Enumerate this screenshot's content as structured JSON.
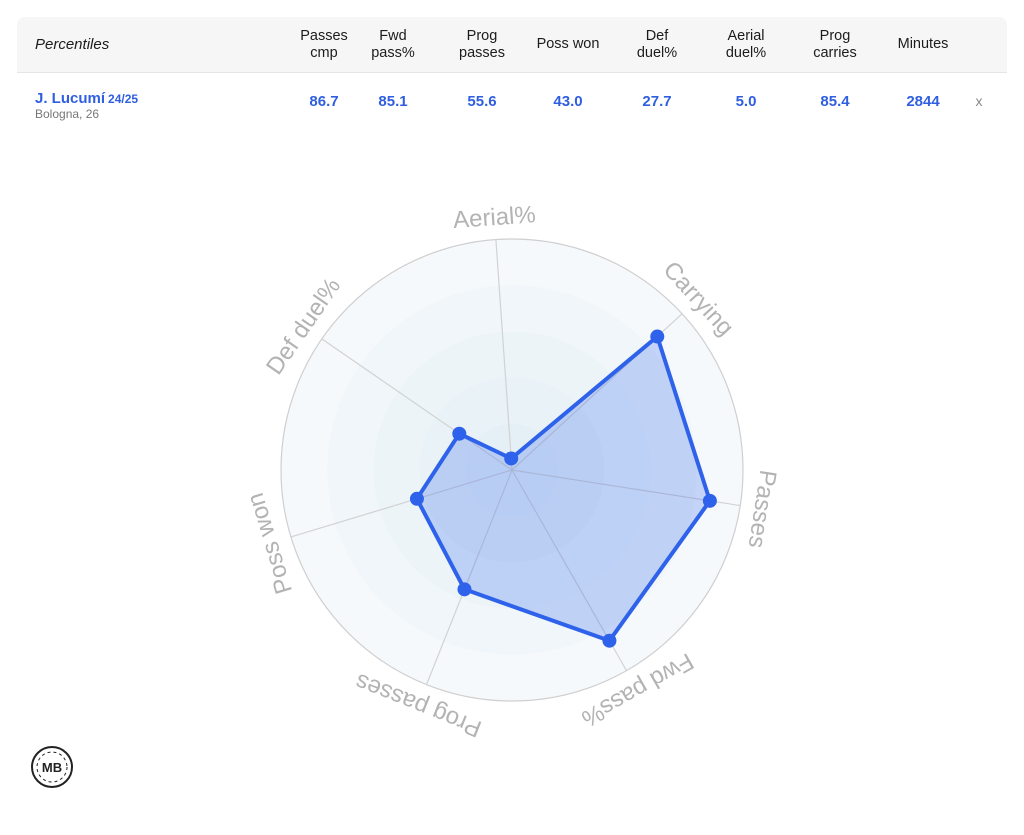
{
  "table": {
    "title": "Percentiles",
    "headers": [
      {
        "line1": "Passes",
        "line2": "cmp"
      },
      {
        "line1": "Fwd",
        "line2": "pass%"
      },
      {
        "line1": "Prog",
        "line2": "passes"
      },
      {
        "line1": "Poss won",
        "line2": ""
      },
      {
        "line1": "Def",
        "line2": "duel%"
      },
      {
        "line1": "Aerial",
        "line2": "duel%"
      },
      {
        "line1": "Prog",
        "line2": "carries"
      },
      {
        "line1": "Minutes",
        "line2": ""
      }
    ],
    "player": {
      "name": "J. Lucumí",
      "season": "24/25",
      "club_age": "Bologna, 26",
      "values": [
        "86.7",
        "85.1",
        "55.6",
        "43.0",
        "27.7",
        "5.0",
        "85.4",
        "2844"
      ],
      "remove_label": "x"
    }
  },
  "chart_data": {
    "type": "radar",
    "axes": [
      "Aerial%",
      "Carrying",
      "Passes",
      "Fwd pass%",
      "Prog passes",
      "Poss won",
      "Def duel%"
    ],
    "values": [
      5.0,
      85.4,
      86.7,
      85.1,
      55.6,
      43.0,
      27.7
    ],
    "range": [
      0,
      100
    ],
    "fill_color": "#2f62ea",
    "line_color": "#2f62ea"
  },
  "logo": {
    "text": "MB"
  }
}
